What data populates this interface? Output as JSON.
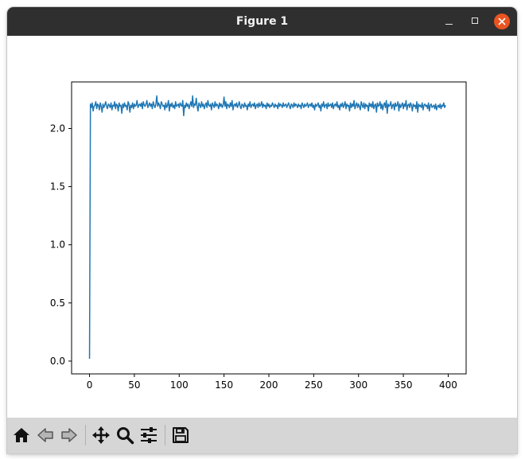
{
  "window": {
    "title": "Figure 1"
  },
  "toolbar": {
    "items": [
      {
        "name": "home",
        "icon": "home-icon"
      },
      {
        "name": "back",
        "icon": "arrow-left-icon"
      },
      {
        "name": "forward",
        "icon": "arrow-right-icon"
      },
      {
        "name": "pan",
        "icon": "move-arrows-icon"
      },
      {
        "name": "zoom",
        "icon": "magnifier-icon"
      },
      {
        "name": "configure",
        "icon": "sliders-icon"
      },
      {
        "name": "save",
        "icon": "floppy-disk-icon"
      }
    ]
  },
  "colors": {
    "line": "#1f77b4",
    "titlebar": "#2f2f2f",
    "close": "#e95420",
    "toolbar": "#d6d6d6"
  },
  "chart_data": {
    "type": "line",
    "title": "",
    "xlabel": "",
    "ylabel": "",
    "xlim": [
      -20,
      420
    ],
    "ylim": [
      -0.11,
      2.4
    ],
    "xticks": [
      0,
      50,
      100,
      150,
      200,
      250,
      300,
      350,
      400
    ],
    "xtick_labels": [
      "0",
      "50",
      "100",
      "150",
      "200",
      "250",
      "300",
      "350",
      "400"
    ],
    "yticks": [
      0.0,
      0.5,
      1.0,
      1.5,
      2.0
    ],
    "ytick_labels": [
      "0.0",
      "0.5",
      "1.0",
      "1.5",
      "2.0"
    ],
    "grid": false,
    "series": [
      {
        "x_start": 0,
        "x_step": 1,
        "values": [
          0.02,
          2.21,
          2.18,
          2.22,
          2.15,
          2.19,
          2.2,
          2.23,
          2.17,
          2.21,
          2.2,
          2.16,
          2.22,
          2.19,
          2.14,
          2.21,
          2.18,
          2.2,
          2.23,
          2.19,
          2.17,
          2.21,
          2.2,
          2.18,
          2.22,
          2.16,
          2.2,
          2.19,
          2.23,
          2.17,
          2.21,
          2.2,
          2.15,
          2.22,
          2.19,
          2.2,
          2.13,
          2.21,
          2.18,
          2.22,
          2.19,
          2.2,
          2.16,
          2.23,
          2.21,
          2.14,
          2.2,
          2.18,
          2.22,
          2.17,
          2.21,
          2.19,
          2.2,
          2.24,
          2.18,
          2.2,
          2.21,
          2.19,
          2.22,
          2.17,
          2.23,
          2.2,
          2.19,
          2.21,
          2.24,
          2.18,
          2.2,
          2.22,
          2.19,
          2.21,
          2.17,
          2.23,
          2.2,
          2.18,
          2.21,
          2.28,
          2.19,
          2.22,
          2.2,
          2.17,
          2.23,
          2.21,
          2.19,
          2.2,
          2.16,
          2.22,
          2.18,
          2.2,
          2.24,
          2.15,
          2.21,
          2.19,
          2.22,
          2.18,
          2.2,
          2.17,
          2.23,
          2.19,
          2.2,
          2.21,
          2.18,
          2.22,
          2.2,
          2.19,
          2.24,
          2.11,
          2.2,
          2.18,
          2.22,
          2.19,
          2.21,
          2.17,
          2.2,
          2.23,
          2.19,
          2.28,
          2.18,
          2.21,
          2.2,
          2.26,
          2.19,
          2.15,
          2.22,
          2.2,
          2.18,
          2.23,
          2.19,
          2.21,
          2.17,
          2.2,
          2.22,
          2.18,
          2.24,
          2.2,
          2.19,
          2.21,
          2.16,
          2.22,
          2.2,
          2.18,
          2.23,
          2.19,
          2.21,
          2.2,
          2.17,
          2.22,
          2.19,
          2.21,
          2.18,
          2.2,
          2.27,
          2.19,
          2.23,
          2.17,
          2.21,
          2.2,
          2.18,
          2.22,
          2.19,
          2.24,
          2.16,
          2.2,
          2.21,
          2.19,
          2.22,
          2.18,
          2.2,
          2.23,
          2.19,
          2.17,
          2.21,
          2.2,
          2.18,
          2.22,
          2.19,
          2.2,
          2.16,
          2.21,
          2.19,
          2.23,
          2.18,
          2.2,
          2.21,
          2.19,
          2.22,
          2.17,
          2.2,
          2.21,
          2.18,
          2.22,
          2.19,
          2.2,
          2.23,
          2.18,
          2.21,
          2.19,
          2.2,
          2.17,
          2.22,
          2.19,
          2.21,
          2.18,
          2.2,
          2.19,
          2.22,
          2.2,
          2.18,
          2.21,
          2.19,
          2.2,
          2.17,
          2.22,
          2.19,
          2.21,
          2.2,
          2.18,
          2.22,
          2.19,
          2.2,
          2.21,
          2.18,
          2.2,
          2.22,
          2.19,
          2.17,
          2.21,
          2.2,
          2.18,
          2.22,
          2.19,
          2.21,
          2.2,
          2.18,
          2.21,
          2.19,
          2.2,
          2.17,
          2.22,
          2.2,
          2.18,
          2.21,
          2.19,
          2.2,
          2.22,
          2.18,
          2.2,
          2.21,
          2.19,
          2.22,
          2.18,
          2.2,
          2.16,
          2.21,
          2.19,
          2.2,
          2.22,
          2.18,
          2.2,
          2.15,
          2.21,
          2.19,
          2.23,
          2.18,
          2.2,
          2.21,
          2.17,
          2.22,
          2.19,
          2.2,
          2.21,
          2.18,
          2.22,
          2.17,
          2.2,
          2.21,
          2.19,
          2.23,
          2.18,
          2.2,
          2.16,
          2.21,
          2.19,
          2.22,
          2.18,
          2.2,
          2.23,
          2.17,
          2.21,
          2.19,
          2.2,
          2.15,
          2.22,
          2.18,
          2.21,
          2.19,
          2.24,
          2.17,
          2.2,
          2.22,
          2.18,
          2.21,
          2.19,
          2.16,
          2.23,
          2.2,
          2.18,
          2.22,
          2.17,
          2.21,
          2.19,
          2.2,
          2.15,
          2.22,
          2.19,
          2.21,
          2.18,
          2.23,
          2.17,
          2.2,
          2.21,
          2.14,
          2.22,
          2.19,
          2.2,
          2.23,
          2.17,
          2.21,
          2.16,
          2.2,
          2.22,
          2.18,
          2.24,
          2.13,
          2.21,
          2.19,
          2.2,
          2.23,
          2.17,
          2.2,
          2.21,
          2.16,
          2.22,
          2.19,
          2.2,
          2.23,
          2.15,
          2.21,
          2.18,
          2.2,
          2.22,
          2.17,
          2.21,
          2.19,
          2.24,
          2.16,
          2.2,
          2.21,
          2.18,
          2.22,
          2.2,
          2.15,
          2.21,
          2.19,
          2.2,
          2.17,
          2.23,
          2.14,
          2.21,
          2.19,
          2.2,
          2.18,
          2.22,
          2.16,
          2.2,
          2.21,
          2.19,
          2.2,
          2.17,
          2.22,
          2.15,
          2.2,
          2.21,
          2.18,
          2.19,
          2.2,
          2.17,
          2.21,
          2.16,
          2.19,
          2.2,
          2.18,
          2.21,
          2.17,
          2.2,
          2.19,
          2.22,
          2.18,
          2.2
        ]
      }
    ]
  }
}
